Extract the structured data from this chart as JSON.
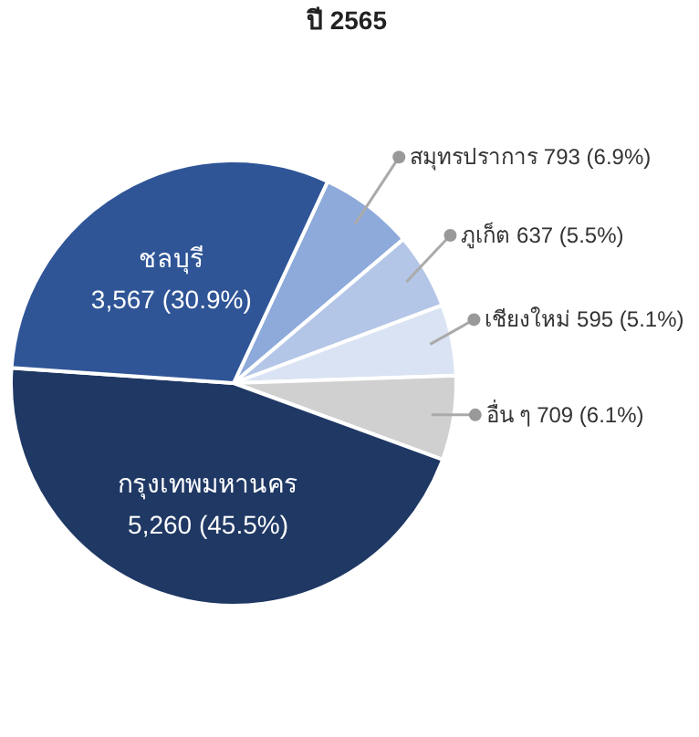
{
  "chart_data": {
    "type": "pie",
    "title": "ปี 2565",
    "categories": [
      "สมุทรปราการ",
      "ภูเก็ต",
      "เชียงใหม่",
      "อื่น ๆ",
      "กรุงเทพมหานคร",
      "ชลบุรี"
    ],
    "values": [
      793,
      637,
      595,
      709,
      5260,
      3567
    ],
    "value_labels": [
      "793 (6.9%)",
      "637 (5.5%)",
      "595 (5.1%)",
      "709 (6.1%)",
      "5,260 (45.5%)",
      "3,567 (30.9%)"
    ],
    "colors": [
      "#8eaadb",
      "#b4c6e7",
      "#dae3f3",
      "#d0d0d0",
      "#1f3864",
      "#2f5597"
    ]
  }
}
